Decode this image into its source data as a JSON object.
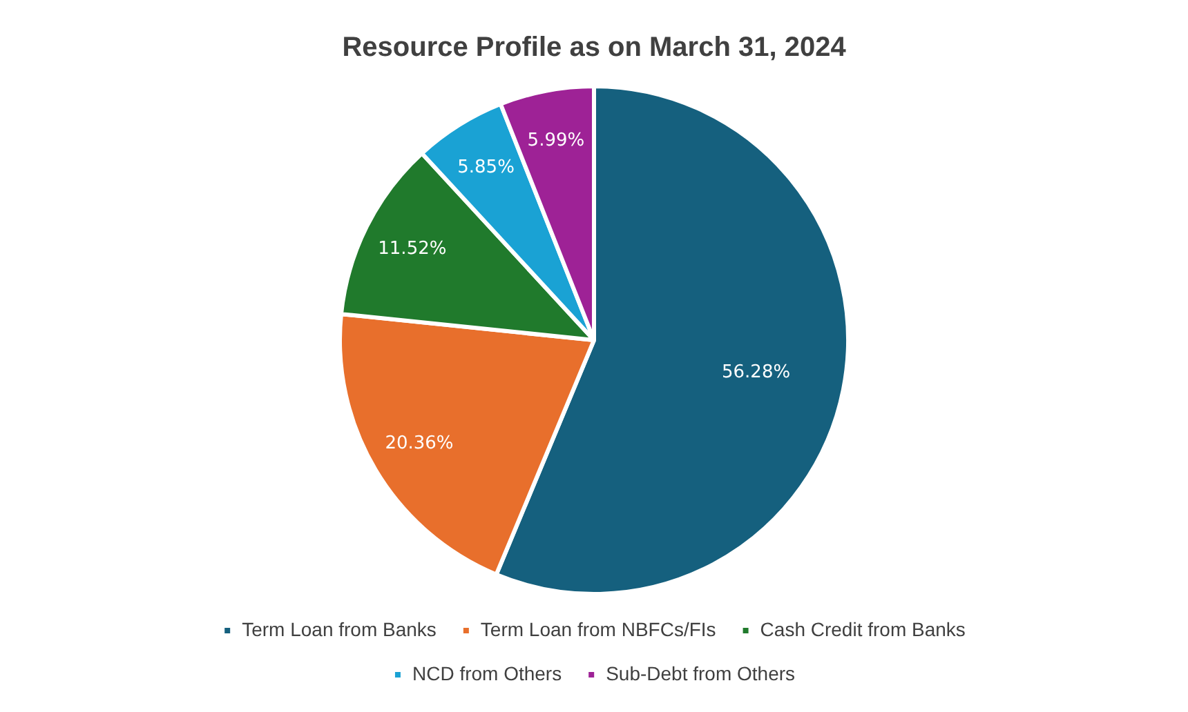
{
  "chart_data": {
    "type": "pie",
    "title": "Resource Profile as on March 31, 2024",
    "categories": [
      "Term Loan from Banks",
      "Term Loan from NBFCs/FIs",
      "Cash Credit from Banks",
      "NCD from Others",
      "Sub-Debt from Others"
    ],
    "values": [
      56.28,
      20.36,
      11.52,
      5.85,
      5.99
    ],
    "colors": [
      "#15607e",
      "#e86f2c",
      "#207a2c",
      "#1aa2d4",
      "#9e2296"
    ],
    "value_labels": [
      "56.28%",
      "20.36%",
      "11.52%",
      "5.85%",
      "5.99%"
    ],
    "legend": "bottom"
  }
}
